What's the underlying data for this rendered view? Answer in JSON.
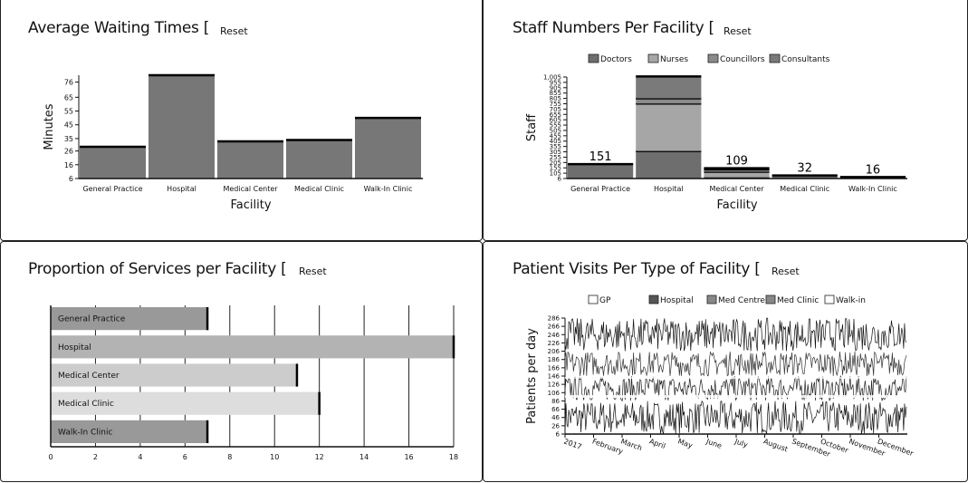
{
  "panels": {
    "waiting": {
      "title": "Average Waiting Times [",
      "reset": "Reset",
      "chart_data": {
        "type": "bar",
        "categories": [
          "General Practice",
          "Hospital",
          "Medical Center",
          "Medical Clinic",
          "Walk-In Clinic"
        ],
        "values": [
          29,
          81,
          33,
          34,
          50
        ],
        "xlabel": "Facility",
        "ylabel": "Minutes",
        "ylim": [
          6,
          81
        ],
        "yticks": [
          6,
          16,
          26,
          35,
          45,
          55,
          65,
          76
        ],
        "color": "#777777"
      }
    },
    "staff": {
      "title": "Staff Numbers Per Facility [",
      "reset": "Reset",
      "chart_data": {
        "type": "bar",
        "stacked": true,
        "categories": [
          "General Practice",
          "Hospital",
          "Medical Center",
          "Medical Clinic",
          "Walk-In Clinic"
        ],
        "series": [
          {
            "name": "Doctors",
            "values": [
              151,
              290,
              12,
              32,
              16
            ],
            "color": "#6e6e6e"
          },
          {
            "name": "Nurses",
            "values": [
              0,
              500,
              60,
              0,
              0
            ],
            "color": "#a6a6a6"
          },
          {
            "name": "Councillors",
            "values": [
              0,
              55,
              25,
              0,
              0
            ],
            "color": "#8a8a8a"
          },
          {
            "name": "Consultants",
            "values": [
              0,
              230,
              12,
              0,
              0
            ],
            "color": "#7a7a7a"
          }
        ],
        "totals": [
          "151",
          "",
          "109",
          "32",
          "16"
        ],
        "xlabel": "Facility",
        "ylabel": "Staff",
        "ylim": [
          6,
          1075
        ],
        "yticks": [
          "6",
          "105",
          "155",
          "205",
          "255",
          "305",
          "355",
          "405",
          "455",
          "505",
          "555",
          "605",
          "655",
          "705",
          "755",
          "805",
          "855",
          "905",
          "955",
          "1,005"
        ],
        "legend": "top"
      }
    },
    "services": {
      "title": "Proportion of Services per Facility [",
      "reset": "Reset",
      "chart_data": {
        "type": "bar",
        "orientation": "horizontal",
        "categories": [
          "General Practice",
          "Hospital",
          "Medical Center",
          "Medical Clinic",
          "Walk-In Clinic"
        ],
        "values": [
          7,
          18,
          11,
          12,
          7
        ],
        "colors": [
          "#999999",
          "#b3b3b3",
          "#cccccc",
          "#dddddd",
          "#999999"
        ],
        "xlim": [
          0,
          18
        ],
        "xticks": [
          "0",
          "2",
          "4",
          "6",
          "8",
          "10",
          "12",
          "14",
          "16",
          "18"
        ]
      }
    },
    "visits": {
      "title": "Patient Visits Per Type of Facility [",
      "reset": "Reset",
      "chart_data": {
        "type": "line",
        "series": [
          {
            "name": "GP",
            "color": "#ffffff"
          },
          {
            "name": "Hospital",
            "color": "#555555"
          },
          {
            "name": "Med Centre",
            "color": "#888888"
          },
          {
            "name": "Med Clinic",
            "color": "#888888"
          },
          {
            "name": "Walk-in",
            "color": "#ffffff"
          }
        ],
        "x_domain": [
          "2017-01-01",
          "2017-12-31"
        ],
        "xticks": [
          "2017",
          "February",
          "March",
          "April",
          "May",
          "June",
          "July",
          "August",
          "September",
          "October",
          "November",
          "December"
        ],
        "ylabel": "Patients per day",
        "ylim": [
          6,
          286
        ],
        "yticks": [
          "6",
          "26",
          "46",
          "66",
          "86",
          "106",
          "126",
          "146",
          "166",
          "186",
          "206",
          "226",
          "246",
          "266",
          "286"
        ],
        "legend": "top"
      }
    }
  }
}
